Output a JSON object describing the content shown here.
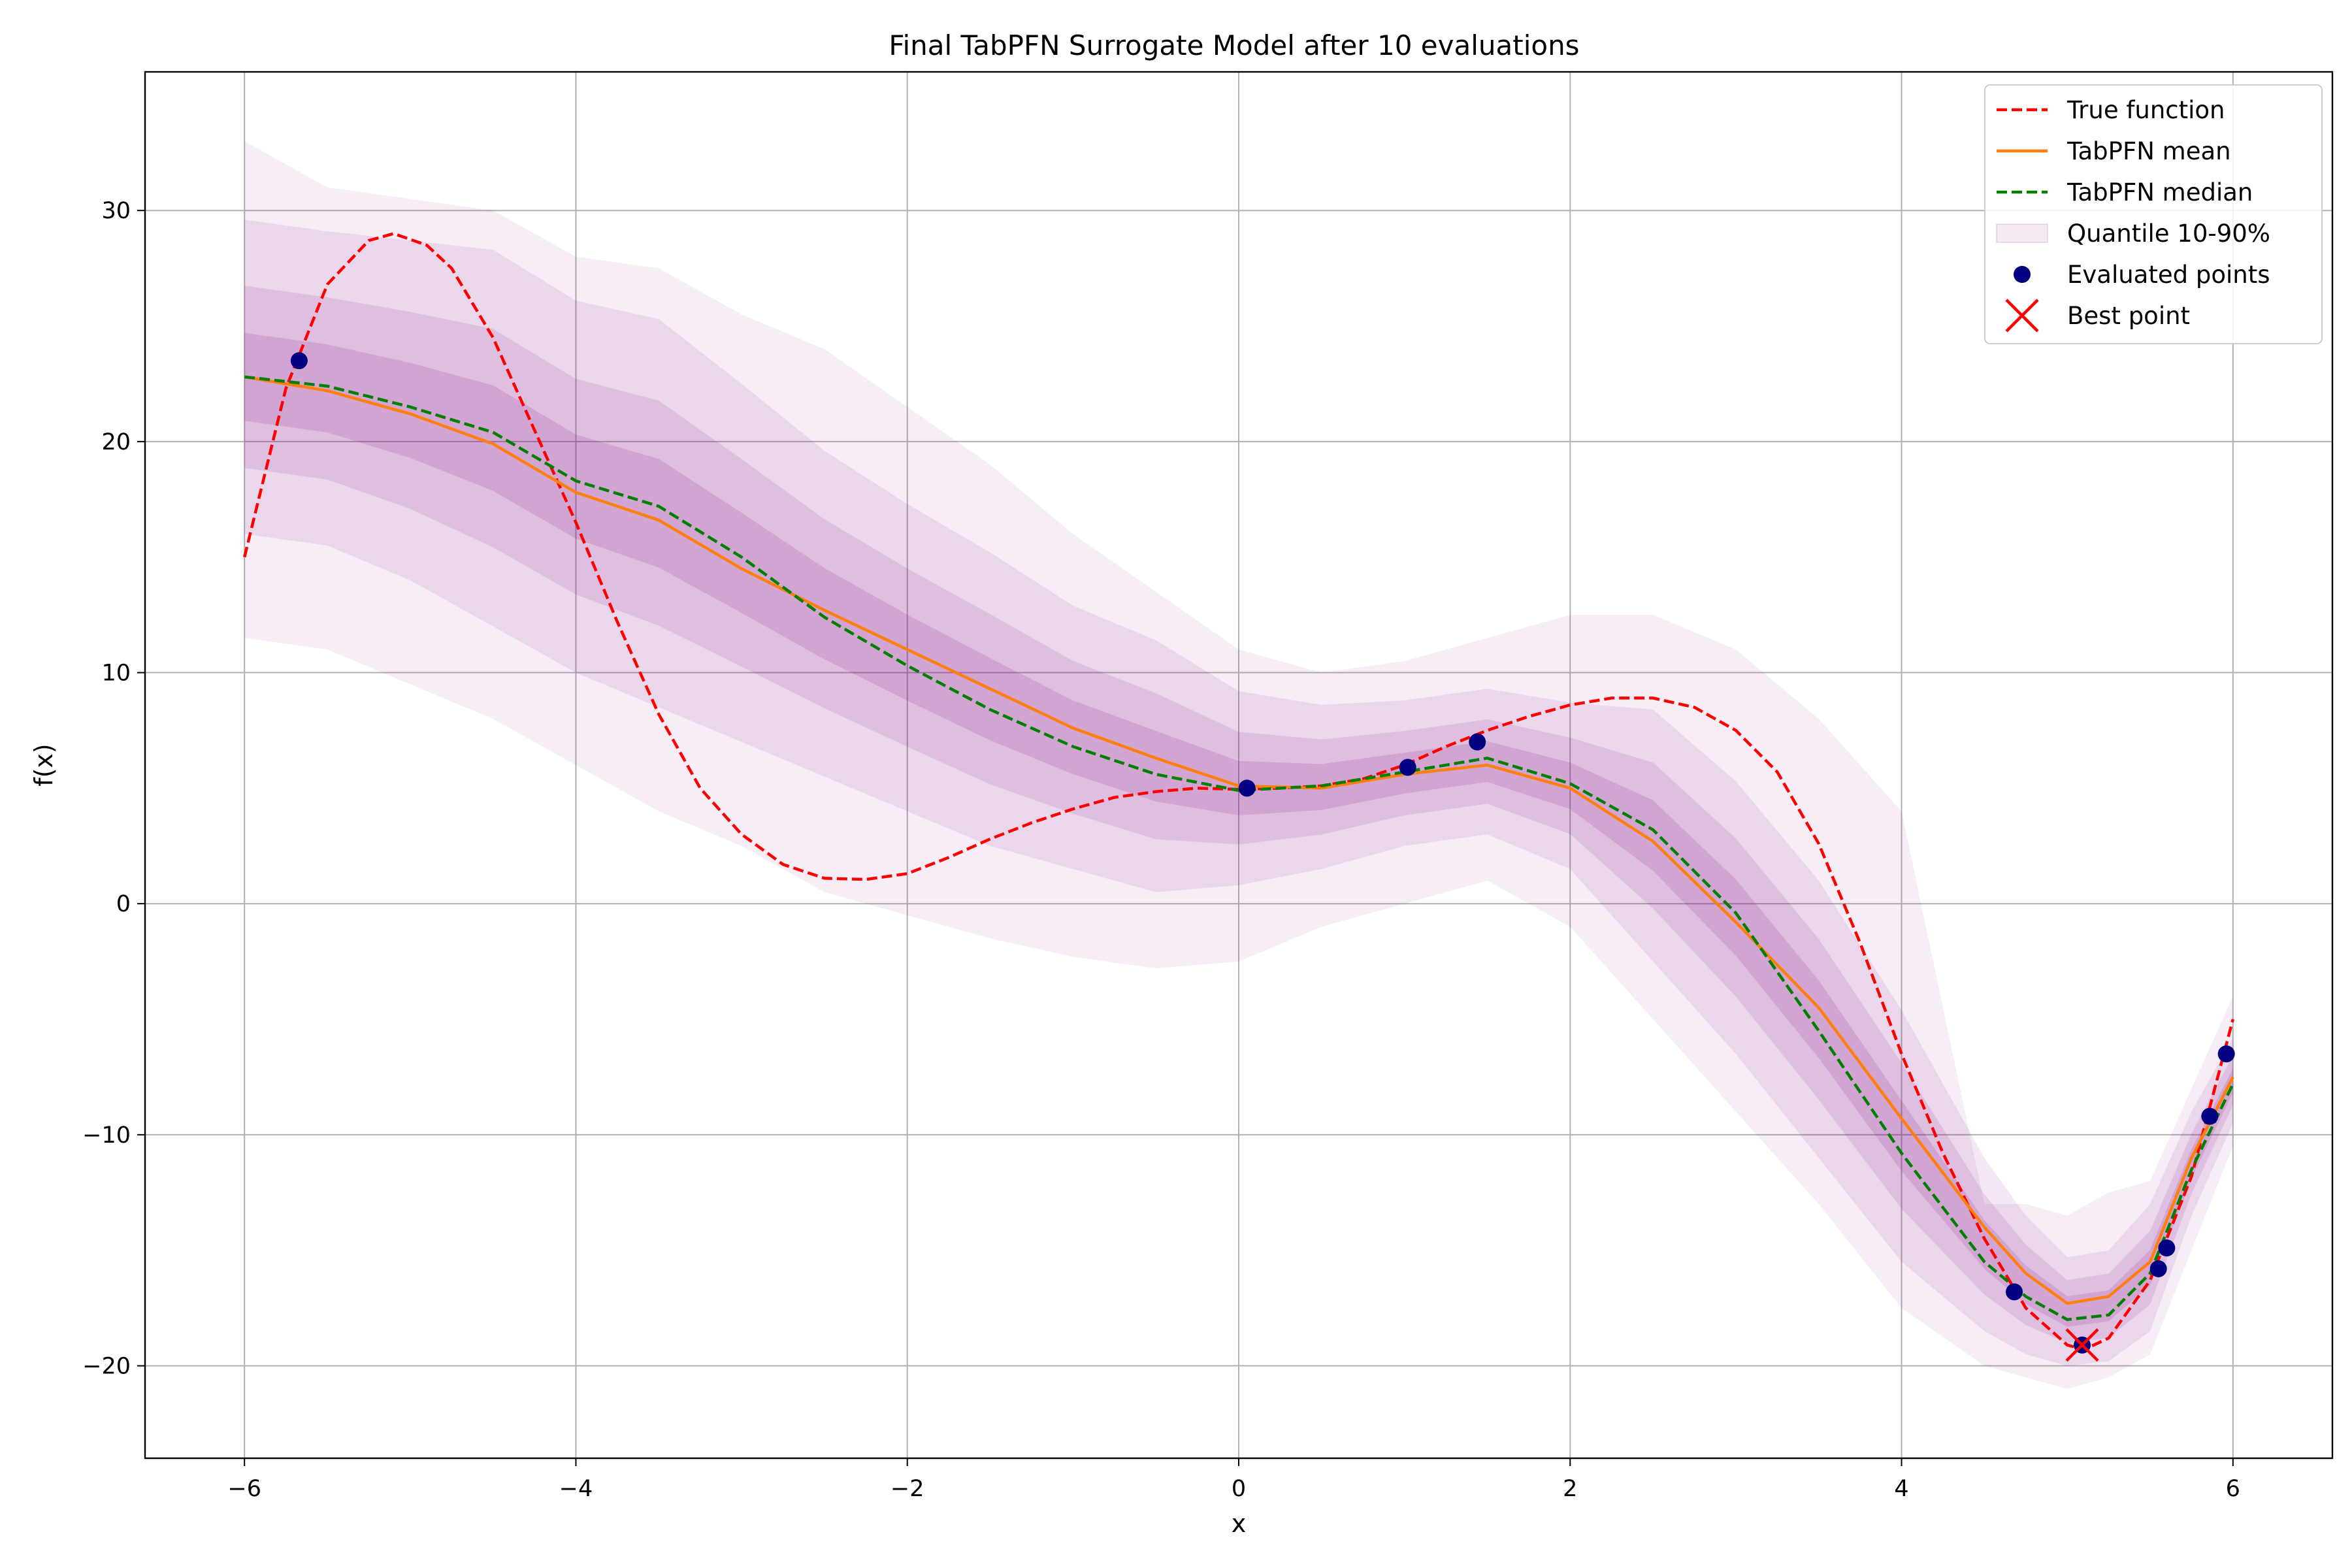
{
  "chart_data": {
    "type": "line",
    "title": "Final TabPFN Surrogate Model after 10 evaluations",
    "xlabel": "x",
    "ylabel": "f(x)",
    "xlim": [
      -6.6,
      6.6
    ],
    "ylim": [
      -24,
      36
    ],
    "xticks": [
      -6,
      -4,
      -2,
      0,
      2,
      4,
      6
    ],
    "yticks": [
      -20,
      -10,
      0,
      10,
      20,
      30
    ],
    "xtick_labels": [
      "−6",
      "−4",
      "−2",
      "0",
      "2",
      "4",
      "6"
    ],
    "ytick_labels": [
      "−20",
      "−10",
      "0",
      "10",
      "20",
      "30"
    ],
    "grid": true,
    "legend_position": "top-right",
    "legend": [
      {
        "label": "True function",
        "kind": "dashed-line",
        "color": "#ff0000"
      },
      {
        "label": "TabPFN mean",
        "kind": "line",
        "color": "#ff7f0e"
      },
      {
        "label": "TabPFN median",
        "kind": "dashed-line",
        "color": "#008000"
      },
      {
        "label": "Quantile 10-90%",
        "kind": "patch",
        "color": "#800080"
      },
      {
        "label": "Evaluated points",
        "kind": "dot",
        "color": "#000080"
      },
      {
        "label": "Best point",
        "kind": "x-marker",
        "color": "#ff0000"
      }
    ],
    "x": [
      -6,
      -5.5,
      -5,
      -4.5,
      -4,
      -3.5,
      -3,
      -2.5,
      -2,
      -1.5,
      -1,
      -0.5,
      0,
      0.5,
      1,
      1.5,
      2,
      2.5,
      3,
      3.5,
      4,
      4.5,
      4.75,
      5,
      5.25,
      5.5,
      5.75,
      6
    ],
    "series": [
      {
        "name": "True function",
        "x": [
          -6,
          -5.75,
          -5.5,
          -5.25,
          -5.1,
          -4.9,
          -4.75,
          -4.5,
          -4.25,
          -4,
          -3.75,
          -3.5,
          -3.25,
          -3,
          -2.75,
          -2.5,
          -2.25,
          -2,
          -1.75,
          -1.5,
          -1.25,
          -1,
          -0.75,
          -0.5,
          -0.25,
          0,
          0.25,
          0.5,
          0.75,
          1,
          1.25,
          1.5,
          1.75,
          2,
          2.25,
          2.5,
          2.75,
          3,
          3.25,
          3.5,
          3.75,
          4,
          4.25,
          4.5,
          4.75,
          5,
          5.1,
          5.25,
          5.5,
          5.75,
          6
        ],
        "values": [
          15,
          22.3,
          26.8,
          28.7,
          29,
          28.5,
          27.5,
          24.5,
          20.5,
          16.5,
          12.2,
          8.2,
          5,
          3,
          1.7,
          1.1,
          1.05,
          1.3,
          2,
          2.8,
          3.5,
          4.1,
          4.6,
          4.85,
          5,
          4.95,
          5,
          5.1,
          5.4,
          6,
          6.8,
          7.5,
          8.1,
          8.6,
          8.9,
          8.9,
          8.5,
          7.5,
          5.7,
          2.6,
          -1.7,
          -6.5,
          -10.8,
          -14.5,
          -17.5,
          -19.1,
          -19.3,
          -18.8,
          -16.3,
          -11.8,
          -5
        ]
      },
      {
        "name": "TabPFN mean",
        "values": [
          22.8,
          22.2,
          21.2,
          19.9,
          17.8,
          16.6,
          14.5,
          12.7,
          11.0,
          9.3,
          7.6,
          6.3,
          5.1,
          5.0,
          5.6,
          6.0,
          5.0,
          2.7,
          -0.8,
          -4.5,
          -9.3,
          -14.0,
          -16.0,
          -17.3,
          -17.0,
          -15.5,
          -11.0,
          -7.5
        ]
      },
      {
        "name": "TabPFN median",
        "values": [
          22.8,
          22.4,
          21.5,
          20.4,
          18.3,
          17.2,
          15.0,
          12.4,
          10.3,
          8.4,
          6.8,
          5.6,
          4.9,
          5.1,
          5.7,
          6.3,
          5.2,
          3.2,
          -0.4,
          -5.5,
          -10.8,
          -15.5,
          -17.0,
          -18.0,
          -17.8,
          -16.0,
          -11.5,
          -7.8
        ]
      }
    ],
    "bands": [
      {
        "name": "Quantile 10-90%",
        "color": "#800080",
        "opacity": 0.07,
        "lower": [
          11.5,
          11,
          9.5,
          8,
          6,
          4,
          2.5,
          0.5,
          -0.5,
          -1.5,
          -2.3,
          -2.8,
          -2.5,
          -1,
          0,
          1,
          -1,
          -5,
          -9,
          -13,
          -17.5,
          -20,
          -20.5,
          -21,
          -20.5,
          -19.5,
          -15,
          -10.5
        ],
        "upper": [
          33,
          31,
          30.5,
          30,
          28,
          27.5,
          25.5,
          24,
          21.5,
          19,
          16,
          13.5,
          11,
          10,
          10.5,
          11.5,
          12.5,
          12.5,
          11,
          8,
          4,
          -13,
          -13,
          -13.5,
          -12.5,
          -12,
          -8,
          -4
        ]
      },
      {
        "name": "Quantile 20-80%",
        "color": "#800080",
        "opacity": 0.09,
        "lower": [
          16,
          15.5,
          14,
          12,
          10,
          8.5,
          7,
          5.5,
          4,
          2.5,
          1.5,
          0.5,
          0.8,
          1.5,
          2.5,
          3,
          1.5,
          -2.5,
          -6.5,
          -11,
          -15.5,
          -18.5,
          -19.5,
          -20,
          -19.8,
          -18.5,
          -13.5,
          -9.5
        ]
      },
      {
        "name": "Quantile 30-70%",
        "color": "#800080",
        "opacity": 0.11
      },
      {
        "name": "Quantile 40-60%",
        "color": "#800080",
        "opacity": 0.14
      }
    ],
    "evaluated_points": [
      {
        "x": -5.67,
        "y": 23.5
      },
      {
        "x": 0.05,
        "y": 5.0
      },
      {
        "x": 1.02,
        "y": 5.9
      },
      {
        "x": 1.44,
        "y": 7.0
      },
      {
        "x": 4.68,
        "y": -16.8
      },
      {
        "x": 5.09,
        "y": -19.1
      },
      {
        "x": 5.55,
        "y": -15.8
      },
      {
        "x": 5.6,
        "y": -14.9
      },
      {
        "x": 5.86,
        "y": -9.2
      },
      {
        "x": 5.96,
        "y": -6.5
      }
    ],
    "best_point": {
      "x": 5.09,
      "y": -19.1
    }
  }
}
